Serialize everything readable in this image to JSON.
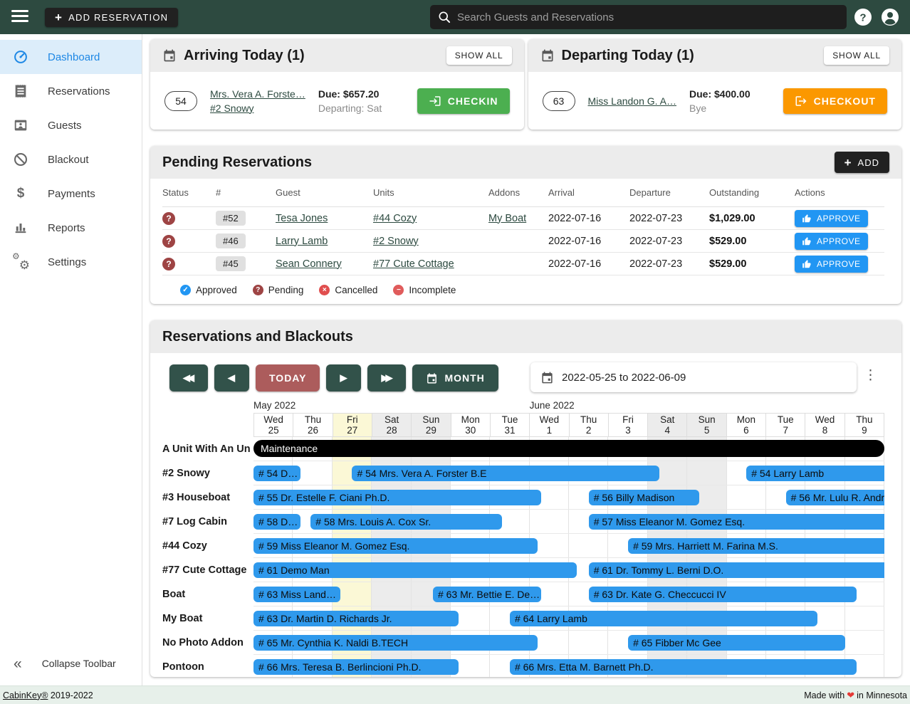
{
  "topbar": {
    "add_reservation_label": "ADD RESERVATION",
    "search_placeholder": "Search Guests and Reservations"
  },
  "sidebar": {
    "items": [
      {
        "label": "Dashboard",
        "icon": "dashboard-icon",
        "active": true
      },
      {
        "label": "Reservations",
        "icon": "reservations-icon",
        "active": false
      },
      {
        "label": "Guests",
        "icon": "guests-icon",
        "active": false
      },
      {
        "label": "Blackout",
        "icon": "blackout-icon",
        "active": false
      },
      {
        "label": "Payments",
        "icon": "payments-icon",
        "active": false
      },
      {
        "label": "Reports",
        "icon": "reports-icon",
        "active": false
      },
      {
        "label": "Settings",
        "icon": "settings-icon",
        "active": false
      }
    ],
    "collapse_label": "Collapse Toolbar"
  },
  "arriving": {
    "title": "Arriving Today (1)",
    "show_all_label": "SHOW ALL",
    "entry": {
      "number": "54",
      "guest": "Mrs. Vera A. Forste…",
      "unit": "#2 Snowy",
      "due": "Due: $657.20",
      "note": "Departing: Sat",
      "action_label": "CHECKIN"
    }
  },
  "departing": {
    "title": "Departing Today (1)",
    "show_all_label": "SHOW ALL",
    "entry": {
      "number": "63",
      "guest": "Miss Landon G. A…",
      "due": "Due: $400.00",
      "note": "Bye",
      "action_label": "CHECKOUT"
    }
  },
  "pending": {
    "title": "Pending Reservations",
    "add_label": "ADD",
    "columns": [
      "Status",
      "#",
      "Guest",
      "Units",
      "Addons",
      "Arrival",
      "Departure",
      "Outstanding",
      "Actions"
    ],
    "rows": [
      {
        "status": "pending",
        "number": "#52",
        "guest": "Tesa Jones",
        "unit": "#44 Cozy",
        "addon": "My Boat",
        "arrival": "2022-07-16",
        "departure": "2022-07-23",
        "outstanding": "$1,029.00",
        "action": "APPROVE"
      },
      {
        "status": "pending",
        "number": "#46",
        "guest": "Larry Lamb",
        "unit": "#2 Snowy",
        "addon": "",
        "arrival": "2022-07-16",
        "departure": "2022-07-23",
        "outstanding": "$529.00",
        "action": "APPROVE"
      },
      {
        "status": "pending",
        "number": "#45",
        "guest": "Sean Connery",
        "unit": "#77 Cute Cottage",
        "addon": "",
        "arrival": "2022-07-16",
        "departure": "2022-07-23",
        "outstanding": "$529.00",
        "action": "APPROVE"
      }
    ],
    "legend": [
      {
        "label": "Approved",
        "type": "approved"
      },
      {
        "label": "Pending",
        "type": "pending"
      },
      {
        "label": "Cancelled",
        "type": "cancelled"
      },
      {
        "label": "Incomplete",
        "type": "incomplete"
      }
    ]
  },
  "calendar": {
    "title": "Reservations and Blackouts",
    "back_fast_label": "fast-backward",
    "back_label": "backward",
    "today_label": "TODAY",
    "forward_label": "forward",
    "forward_fast_label": "fast-forward",
    "month_label": "MONTH",
    "date_range": "2022-05-25 to 2022-06-09",
    "month_labels": [
      {
        "label": "May 2022",
        "col": 0
      },
      {
        "label": "June 2022",
        "col": 7
      }
    ],
    "days": [
      {
        "dow": "Wed",
        "day": "25"
      },
      {
        "dow": "Thu",
        "day": "26"
      },
      {
        "dow": "Fri",
        "day": "27",
        "today": true
      },
      {
        "dow": "Sat",
        "day": "28",
        "weekend": true
      },
      {
        "dow": "Sun",
        "day": "29",
        "weekend": true
      },
      {
        "dow": "Mon",
        "day": "30"
      },
      {
        "dow": "Tue",
        "day": "31"
      },
      {
        "dow": "Wed",
        "day": "1"
      },
      {
        "dow": "Thu",
        "day": "2"
      },
      {
        "dow": "Fri",
        "day": "3"
      },
      {
        "dow": "Sat",
        "day": "4",
        "weekend": true
      },
      {
        "dow": "Sun",
        "day": "5",
        "weekend": true
      },
      {
        "dow": "Mon",
        "day": "6"
      },
      {
        "dow": "Tue",
        "day": "7"
      },
      {
        "dow": "Wed",
        "day": "8"
      },
      {
        "dow": "Thu",
        "day": "9"
      }
    ],
    "rows": [
      {
        "unit": "A Unit With An Un",
        "bars": [
          {
            "label": "Maintenance",
            "start": 0,
            "end": 16,
            "type": "maintenance"
          }
        ]
      },
      {
        "unit": "#2 Snowy",
        "bars": [
          {
            "label": "# 54 D…",
            "start": 0,
            "end": 1.2
          },
          {
            "label": "# 54 Mrs. Vera A. Forster B.E",
            "start": 2.5,
            "end": 10.3
          },
          {
            "label": "# 54 Larry Lamb",
            "start": 12.5,
            "end": 16,
            "clip_right": true
          }
        ]
      },
      {
        "unit": "#3 Houseboat",
        "bars": [
          {
            "label": "# 55 Dr. Estelle F. Ciani Ph.D.",
            "start": 0,
            "end": 7.3
          },
          {
            "label": "# 56 Billy Madison",
            "start": 8.5,
            "end": 11.3
          },
          {
            "label": "# 56 Mr. Lulu R. Andr",
            "start": 13.5,
            "end": 16,
            "clip_right": true
          }
        ]
      },
      {
        "unit": "#7 Log Cabin",
        "bars": [
          {
            "label": "# 58 D…",
            "start": 0,
            "end": 1.2
          },
          {
            "label": "# 58 Mrs. Louis A. Cox Sr.",
            "start": 1.45,
            "end": 6.3
          },
          {
            "label": "# 57 Miss Eleanor M. Gomez Esq.",
            "start": 8.5,
            "end": 16,
            "clip_right": true
          }
        ]
      },
      {
        "unit": "#44 Cozy",
        "bars": [
          {
            "label": "# 59 Miss Eleanor M. Gomez Esq.",
            "start": 0,
            "end": 7.2
          },
          {
            "label": "# 59 Mrs. Harriett M. Farina M.S.",
            "start": 9.5,
            "end": 16,
            "clip_right": true
          }
        ]
      },
      {
        "unit": "#77 Cute Cottage",
        "bars": [
          {
            "label": "# 61 Demo Man",
            "start": 0,
            "end": 8.2
          },
          {
            "label": "# 61 Dr. Tommy L. Berni D.O.",
            "start": 8.5,
            "end": 16,
            "clip_right": true
          }
        ]
      },
      {
        "unit": "Boat",
        "bars": [
          {
            "label": "# 63 Miss Land…",
            "start": 0,
            "end": 2.2
          },
          {
            "label": "# 63 Mr. Bettie E. De…",
            "start": 4.55,
            "end": 7.3
          },
          {
            "label": "# 63 Dr. Kate G. Checcucci IV",
            "start": 8.5,
            "end": 15.3
          }
        ]
      },
      {
        "unit": "My Boat",
        "bars": [
          {
            "label": "# 63 Dr. Martin D. Richards Jr.",
            "start": 0,
            "end": 5.2
          },
          {
            "label": "# 64 Larry Lamb",
            "start": 6.5,
            "end": 14.3
          }
        ]
      },
      {
        "unit": "No Photo Addon",
        "bars": [
          {
            "label": "# 65 Mr. Cynthia K. Naldi B.TECH",
            "start": 0,
            "end": 7.2
          },
          {
            "label": "# 65 Fibber Mc Gee",
            "start": 9.5,
            "end": 15
          }
        ]
      },
      {
        "unit": "Pontoon",
        "bars": [
          {
            "label": "# 66 Mrs. Teresa B. Berlincioni Ph.D.",
            "start": 0,
            "end": 5.2
          },
          {
            "label": "# 66 Mrs. Etta M. Barnett Ph.D.",
            "start": 6.5,
            "end": 15.3
          }
        ]
      }
    ]
  },
  "footer": {
    "link_label": "CabinKey®",
    "year_label": "2019-2022",
    "made_prefix": "Made with",
    "heart": "❤",
    "made_suffix": "in Minnesota"
  },
  "colors": {
    "topbar_green": "#2d4a40",
    "active_blue": "#1e88e5",
    "checkin_green": "#4caf50",
    "checkout_orange": "#fb9800",
    "approve_blue": "#2196f3",
    "pending_maroon": "#9e4444",
    "bar_blue": "#2f99ec",
    "today_yellow": "#fbf8d6",
    "weekend_gray": "#ececec"
  }
}
